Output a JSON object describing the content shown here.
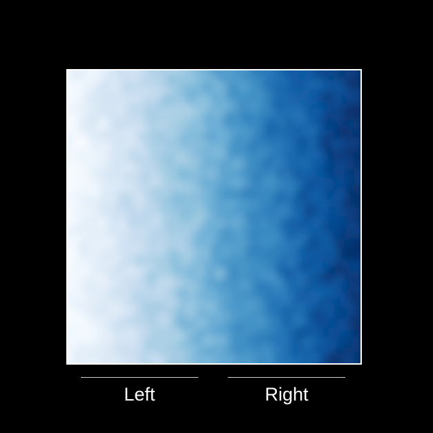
{
  "stimulus": {
    "gradient_direction": "left-to-right",
    "colors": [
      "#f7fbff",
      "#deebf7",
      "#c6dbef",
      "#9ecae1",
      "#6baed6",
      "#4292c6",
      "#2171b5",
      "#08519c",
      "#08306b"
    ],
    "texture": "mottled-noise"
  },
  "labels": {
    "left": "Left",
    "right": "Right"
  }
}
